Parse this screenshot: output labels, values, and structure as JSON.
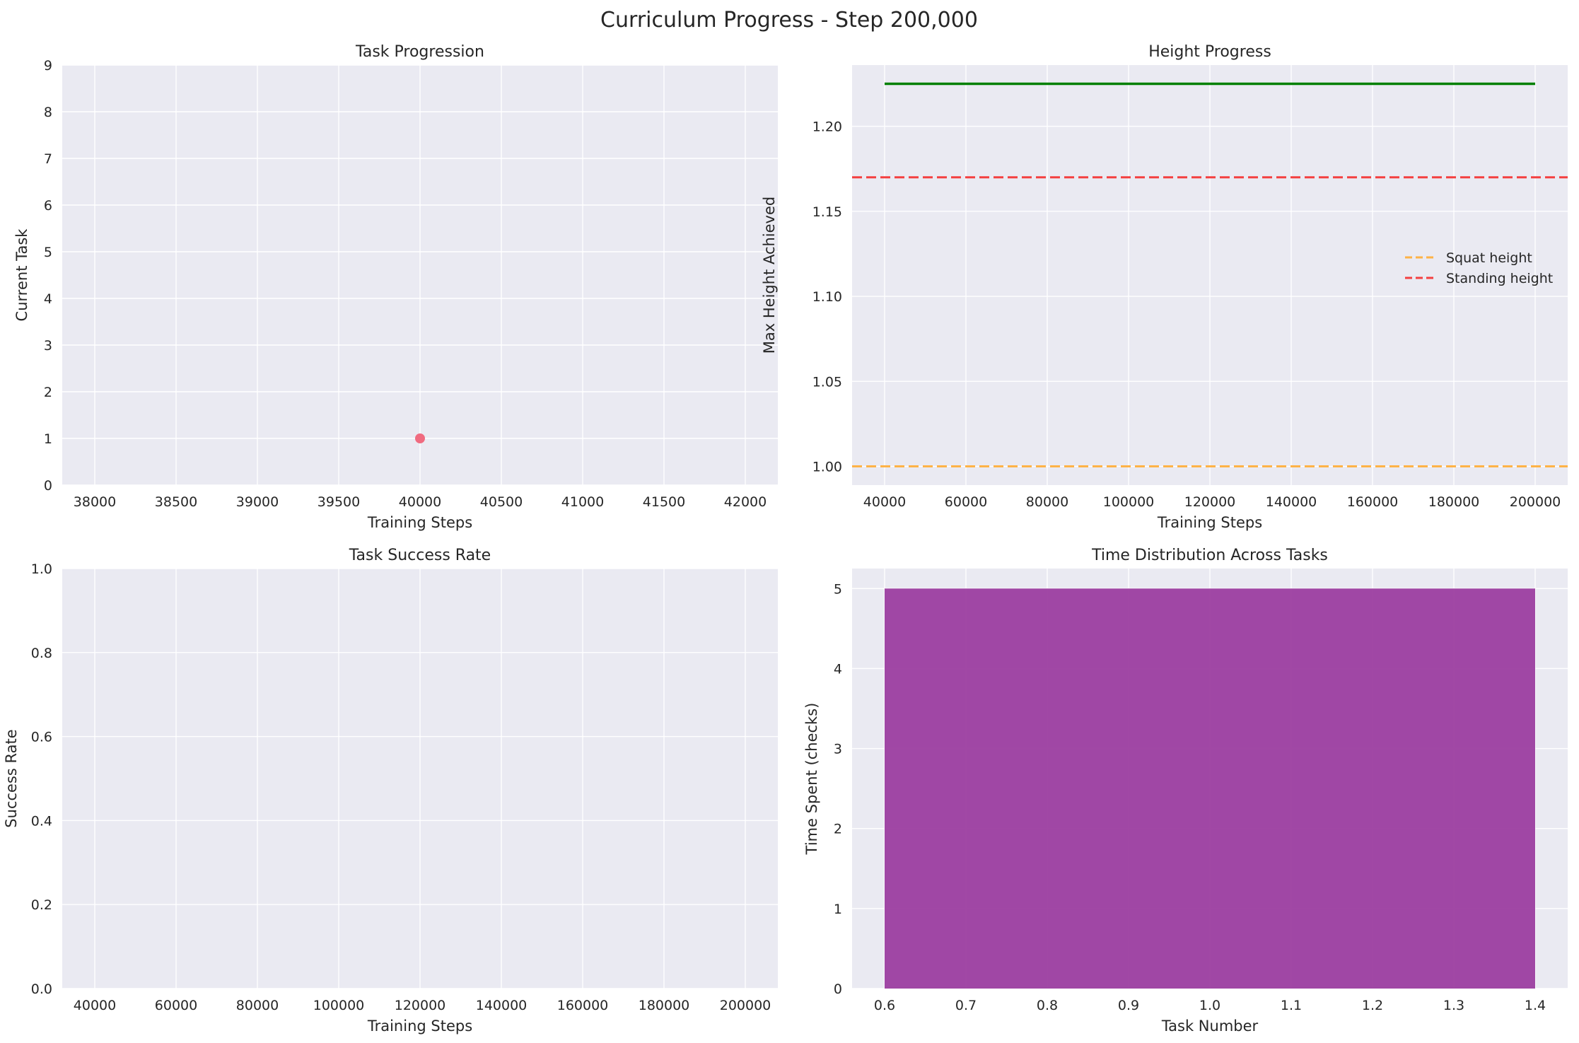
{
  "figure": {
    "suptitle": "Curriculum Progress - Step 200,000"
  },
  "theme": {
    "axes_bg": "#eaeaf2",
    "grid": "#ffffff",
    "text": "#262626",
    "point_color": "#f06b80",
    "height_line_color": "#008000",
    "squat_color": "#ffb347",
    "standing_color": "#f44040",
    "bar_color": "#9c3ea0"
  },
  "chart_data": [
    {
      "id": "task-progression",
      "type": "scatter",
      "title": "Task Progression",
      "xlabel": "Training Steps",
      "ylabel": "Current Task",
      "xlim": [
        37800,
        42200
      ],
      "ylim": [
        0,
        9
      ],
      "xticks": [
        38000,
        38500,
        39000,
        39500,
        40000,
        40500,
        41000,
        41500,
        42000
      ],
      "yticks": [
        0,
        1,
        2,
        3,
        4,
        5,
        6,
        7,
        8,
        9
      ],
      "points": [
        {
          "x": 40000,
          "y": 1
        }
      ],
      "grid": true
    },
    {
      "id": "height-progress",
      "type": "line",
      "title": "Height Progress",
      "xlabel": "Training Steps",
      "ylabel": "Max Height Achieved",
      "xlim": [
        32000,
        208000
      ],
      "ylim": [
        0.989,
        1.236
      ],
      "xticks": [
        40000,
        60000,
        80000,
        100000,
        120000,
        140000,
        160000,
        180000,
        200000
      ],
      "yticks": [
        1.0,
        1.05,
        1.1,
        1.15,
        1.2
      ],
      "ytick_labels": [
        "1.00",
        "1.05",
        "1.10",
        "1.15",
        "1.20"
      ],
      "series": [
        {
          "x": [
            40000,
            200000
          ],
          "values": [
            1.225,
            1.225
          ]
        }
      ],
      "hlines": [
        {
          "name": "Squat height",
          "y": 1.0,
          "style": "dashed"
        },
        {
          "name": "Standing height",
          "y": 1.17,
          "style": "dashed"
        }
      ],
      "legend": "center-right",
      "grid": true
    },
    {
      "id": "task-success-rate",
      "type": "line",
      "title": "Task Success Rate",
      "xlabel": "Training Steps",
      "ylabel": "Success Rate",
      "xlim": [
        32000,
        208000
      ],
      "ylim": [
        0,
        1
      ],
      "xticks": [
        40000,
        60000,
        80000,
        100000,
        120000,
        140000,
        160000,
        180000,
        200000
      ],
      "yticks": [
        0,
        0.2,
        0.4,
        0.6,
        0.8,
        1.0
      ],
      "ytick_labels": [
        "0.0",
        "0.2",
        "0.4",
        "0.6",
        "0.8",
        "1.0"
      ],
      "series": [],
      "grid": true
    },
    {
      "id": "time-distribution",
      "type": "bar",
      "title": "Time Distribution Across Tasks",
      "xlabel": "Task Number",
      "ylabel": "Time Spent (checks)",
      "xlim": [
        0.56,
        1.44
      ],
      "ylim": [
        0,
        5.25
      ],
      "xticks": [
        0.6,
        0.7,
        0.8,
        0.9,
        1.0,
        1.1,
        1.2,
        1.3,
        1.4
      ],
      "xtick_labels": [
        "0.6",
        "0.7",
        "0.8",
        "0.9",
        "1.0",
        "1.1",
        "1.2",
        "1.3",
        "1.4"
      ],
      "yticks": [
        0,
        1,
        2,
        3,
        4,
        5
      ],
      "bars": [
        {
          "x": 1,
          "width": 0.8,
          "value": 5
        }
      ],
      "grid": true
    }
  ]
}
